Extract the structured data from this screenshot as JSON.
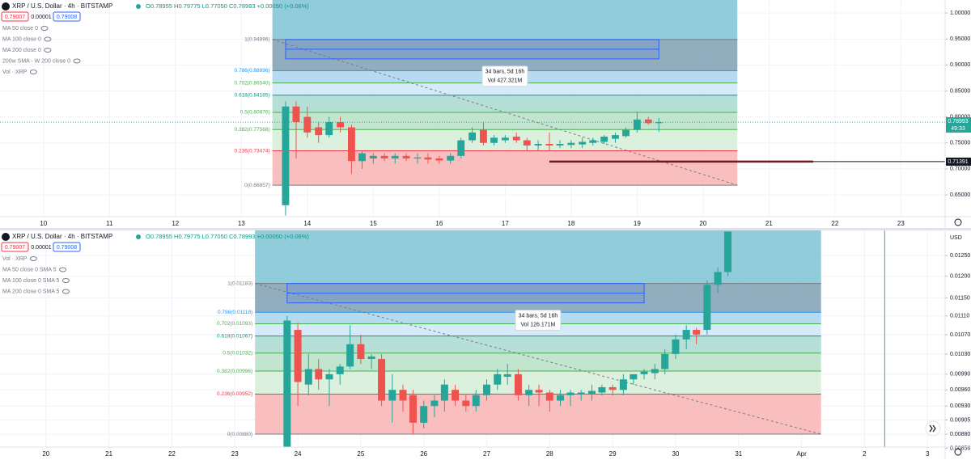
{
  "chart_data": [
    {
      "type": "candlestick",
      "symbol": "XRP / U.S. Dollar · 4h · BITSTAMP",
      "ohlc": "O0.78955 H0.79775 L0.77050 C0.78993 +0.00050 (+0.06%)",
      "prices": [
        "0.79007",
        "0.00001",
        "0.79008"
      ],
      "indicators": [
        "MA 50 close 0",
        "MA 100 close 0",
        "MA 200 close 0",
        "200w SMA - W 200 close 0",
        "Vol · XRP"
      ],
      "log_scale": false,
      "grid": true,
      "up_color": "#26a69a",
      "down_color": "#ef5350",
      "xlim": [
        9.34,
        23.67
      ],
      "xticks": [
        10,
        11,
        12,
        13,
        14,
        15,
        16,
        17,
        18,
        19,
        20,
        21,
        22,
        23
      ],
      "ylim": [
        0.608,
        1.025
      ],
      "yticks": [
        {
          "value": 0.65,
          "label": "0.65000"
        },
        {
          "value": 0.7,
          "label": "0.70000"
        },
        {
          "value": 0.75,
          "label": "0.75000"
        },
        {
          "value": 0.8,
          "label": "0.80000"
        },
        {
          "value": 0.85,
          "label": "0.85000"
        },
        {
          "value": 0.9,
          "label": "0.90000"
        },
        {
          "value": 0.95,
          "label": "0.95000"
        },
        {
          "value": 1.0,
          "label": "1.00000"
        }
      ],
      "x": [
        13.67,
        13.83,
        14,
        14.17,
        14.33,
        14.5,
        14.67,
        14.83,
        15,
        15.17,
        15.33,
        15.5,
        15.67,
        15.83,
        16,
        16.17,
        16.33,
        16.5,
        16.67,
        16.83,
        17,
        17.17,
        17.33,
        17.5,
        17.67,
        17.83,
        18,
        18.17,
        18.33,
        18.5,
        18.67,
        18.83,
        19,
        19.17,
        19.33
      ],
      "open": [
        0.63,
        0.82,
        0.8,
        0.78,
        0.765,
        0.79,
        0.78,
        0.715,
        0.72,
        0.725,
        0.72,
        0.725,
        0.72,
        0.722,
        0.72,
        0.716,
        0.725,
        0.755,
        0.775,
        0.75,
        0.755,
        0.762,
        0.755,
        0.745,
        0.748,
        0.745,
        0.746,
        0.747,
        0.75,
        0.752,
        0.758,
        0.763,
        0.775,
        0.795,
        0.788
      ],
      "high": [
        0.83,
        0.83,
        0.82,
        0.79,
        0.8,
        0.8,
        0.785,
        0.735,
        0.73,
        0.73,
        0.73,
        0.73,
        0.73,
        0.73,
        0.725,
        0.73,
        0.76,
        0.78,
        0.79,
        0.765,
        0.765,
        0.77,
        0.76,
        0.755,
        0.77,
        0.755,
        0.755,
        0.76,
        0.76,
        0.765,
        0.77,
        0.78,
        0.81,
        0.8,
        0.798
      ],
      "low": [
        0.61,
        0.72,
        0.76,
        0.75,
        0.76,
        0.77,
        0.69,
        0.7,
        0.71,
        0.715,
        0.71,
        0.715,
        0.71,
        0.71,
        0.71,
        0.71,
        0.72,
        0.75,
        0.745,
        0.745,
        0.75,
        0.75,
        0.735,
        0.735,
        0.735,
        0.74,
        0.74,
        0.74,
        0.745,
        0.748,
        0.75,
        0.76,
        0.77,
        0.785,
        0.771
      ],
      "close": [
        0.82,
        0.79,
        0.77,
        0.765,
        0.79,
        0.78,
        0.715,
        0.73,
        0.725,
        0.72,
        0.725,
        0.72,
        0.722,
        0.718,
        0.716,
        0.725,
        0.755,
        0.77,
        0.75,
        0.76,
        0.76,
        0.755,
        0.745,
        0.748,
        0.745,
        0.748,
        0.75,
        0.752,
        0.755,
        0.762,
        0.765,
        0.775,
        0.795,
        0.788,
        0.79
      ],
      "fib": {
        "x": [
          13.47,
          20.52
        ],
        "levels": [
          {
            "price": 0.94896,
            "label": "1(0.94896)"
          },
          {
            "price": 0.88896,
            "label": "0.786(0.88896)"
          },
          {
            "price": 0.8654,
            "label": "0.702(0.86540)"
          },
          {
            "price": 0.84185,
            "label": "0.618(0.84185)"
          },
          {
            "price": 0.80876,
            "label": "0.5(0.80876)"
          },
          {
            "price": 0.77568,
            "label": "0.382(0.77568)"
          },
          {
            "price": 0.73474,
            "label": "0.236(0.73474)"
          },
          {
            "price": 0.66857,
            "label": "0(0.66857)"
          }
        ],
        "colors": [
          "#7cc3d3",
          "#7f9fb3",
          "#a9d4ec",
          "#cfe8f8",
          "#a9d9d1",
          "#b6e0c6",
          "#d5eed7",
          "#f8b4b4"
        ],
        "label_colors": [
          "#787b86",
          "#2196f3",
          "#4caf50",
          "#089981",
          "#4caf50",
          "#4caf50",
          "#f23645",
          "#787b86"
        ]
      },
      "measure": {
        "bars": "34 bars, 5d 16h",
        "vol": "Vol 427.321M"
      },
      "last": {
        "price": 0.78993,
        "timer": "49:33"
      },
      "hline": {
        "price": 0.71391,
        "x": [
          17.67,
          21.67
        ]
      }
    },
    {
      "type": "candlestick",
      "symbol": "XRP / U.S. Dollar · 4h · BITSTAMP",
      "ohlc": "O0.78955 H0.79775 L0.77050 C0.78993 +0.00050 (+0.06%)",
      "prices": [
        "0.79007",
        "0.00001",
        "0.79008"
      ],
      "indicators": [
        "Vol · XRP",
        "MA 50 close 0 SMA 5",
        "MA 100 close 0 SMA 5",
        "MA 200 close 0 SMA 5"
      ],
      "axis_unit": "USD",
      "log_scale": true,
      "grid": true,
      "up_color": "#26a69a",
      "down_color": "#ef5350",
      "xlim": [
        19.27,
        34.28
      ],
      "xticks": [
        20,
        21,
        22,
        23,
        24,
        25,
        26,
        27,
        28,
        29,
        30,
        31,
        {
          "value": 32,
          "label": "Apr"
        },
        {
          "value": 33,
          "label": "2"
        },
        {
          "value": 34,
          "label": "3"
        }
      ],
      "ylim": [
        0.00858,
        0.01313
      ],
      "yticks": [
        {
          "value": 0.00856,
          "label": "0.00856"
        },
        {
          "value": 0.0088,
          "label": "0.00880"
        },
        {
          "value": 0.00905,
          "label": "0.00905"
        },
        {
          "value": 0.0093,
          "label": "0.00930"
        },
        {
          "value": 0.0096,
          "label": "0.00960"
        },
        {
          "value": 0.0099,
          "label": "0.00990"
        },
        {
          "value": 0.0103,
          "label": "0.01030"
        },
        {
          "value": 0.0107,
          "label": "0.01070"
        },
        {
          "value": 0.0111,
          "label": "0.01110"
        },
        {
          "value": 0.0115,
          "label": "0.01150"
        },
        {
          "value": 0.012,
          "label": "0.01200"
        },
        {
          "value": 0.0125,
          "label": "0.01250"
        }
      ],
      "x": [
        23.83,
        24,
        24.17,
        24.33,
        24.5,
        24.67,
        24.83,
        25,
        25.17,
        25.33,
        25.5,
        25.67,
        25.83,
        26,
        26.17,
        26.33,
        26.5,
        26.67,
        26.83,
        27,
        27.17,
        27.33,
        27.5,
        27.67,
        27.83,
        28,
        28.17,
        28.33,
        28.5,
        28.67,
        28.83,
        29,
        29.17,
        29.33,
        29.5,
        29.67,
        29.83,
        30,
        30.17,
        30.33,
        30.5,
        30.67,
        30.83
      ],
      "open": [
        0.00858,
        0.0108,
        0.0097,
        0.01,
        0.0098,
        0.0099,
        0.01005,
        0.0105,
        0.0102,
        0.0102,
        0.0094,
        0.0096,
        0.0095,
        0.009,
        0.0093,
        0.0094,
        0.0096,
        0.0094,
        0.0093,
        0.0095,
        0.0097,
        0.00985,
        0.0099,
        0.0095,
        0.0096,
        0.00955,
        0.0094,
        0.0095,
        0.00952,
        0.00952,
        0.00955,
        0.00965,
        0.0096,
        0.0098,
        0.0099,
        0.00992,
        0.01,
        0.0103,
        0.0106,
        0.0108,
        0.0108,
        0.0118,
        0.0121
      ],
      "high": [
        0.0111,
        0.01095,
        0.0103,
        0.0102,
        0.01,
        0.0101,
        0.0109,
        0.0107,
        0.0103,
        0.0103,
        0.0099,
        0.0097,
        0.0096,
        0.0094,
        0.0095,
        0.0098,
        0.0097,
        0.0095,
        0.0096,
        0.0098,
        0.01,
        0.0101,
        0.01,
        0.0097,
        0.0097,
        0.0096,
        0.0096,
        0.0096,
        0.0096,
        0.0097,
        0.0097,
        0.0097,
        0.0099,
        0.0099,
        0.01,
        0.0101,
        0.0104,
        0.0107,
        0.0109,
        0.01085,
        0.0119,
        0.0122,
        0.0131
      ],
      "low": [
        0.0085,
        0.0093,
        0.0095,
        0.0096,
        0.0093,
        0.0097,
        0.01,
        0.0101,
        0.01,
        0.0093,
        0.009,
        0.0092,
        0.0088,
        0.0089,
        0.0091,
        0.0092,
        0.0093,
        0.0092,
        0.0092,
        0.0094,
        0.0096,
        0.0097,
        0.0094,
        0.0093,
        0.0093,
        0.0092,
        0.0093,
        0.0093,
        0.0094,
        0.0094,
        0.0095,
        0.0095,
        0.0095,
        0.0097,
        0.0098,
        0.0098,
        0.0099,
        0.0102,
        0.0104,
        0.0105,
        0.0107,
        0.0116,
        0.012
      ],
      "close": [
        0.011,
        0.00975,
        0.01,
        0.0098,
        0.0099,
        0.01005,
        0.0105,
        0.0102,
        0.01025,
        0.0094,
        0.0096,
        0.0094,
        0.009,
        0.0093,
        0.0094,
        0.0097,
        0.0094,
        0.0093,
        0.0095,
        0.0097,
        0.0099,
        0.0099,
        0.0095,
        0.0096,
        0.00955,
        0.0094,
        0.0095,
        0.00955,
        0.00955,
        0.00958,
        0.00965,
        0.0096,
        0.0098,
        0.0099,
        0.00995,
        0.01,
        0.0103,
        0.0106,
        0.0108,
        0.0107,
        0.0118,
        0.0121,
        0.0131
      ],
      "fib": {
        "x": [
          23.32,
          32.31
        ],
        "levels": [
          {
            "price": 0.01183,
            "label": "1(0.01183)"
          },
          {
            "price": 0.01118,
            "label": "0.786(0.01118)"
          },
          {
            "price": 0.01093,
            "label": "0.702(0.01093)"
          },
          {
            "price": 0.01067,
            "label": "0.618(0.01067)"
          },
          {
            "price": 0.01032,
            "label": "0.5(0.01032)"
          },
          {
            "price": 0.00996,
            "label": "0.382(0.00996)"
          },
          {
            "price": 0.00952,
            "label": "0.236(0.00952)"
          },
          {
            "price": 0.0088,
            "label": "0(0.00880)"
          }
        ],
        "colors": [
          "#7cc3d3",
          "#7f9fb3",
          "#a9d4ec",
          "#cfe8f8",
          "#a9d9d1",
          "#b6e0c6",
          "#d5eed7",
          "#f8b4b4"
        ],
        "label_colors": [
          "#787b86",
          "#2196f3",
          "#4caf50",
          "#089981",
          "#4caf50",
          "#4caf50",
          "#f23645",
          "#787b86"
        ]
      },
      "measure": {
        "bars": "34 bars, 5d 16h",
        "vol": "Vol 126.171M"
      },
      "vline": {
        "x": 33.32,
        "color": "#4caf50"
      }
    }
  ]
}
